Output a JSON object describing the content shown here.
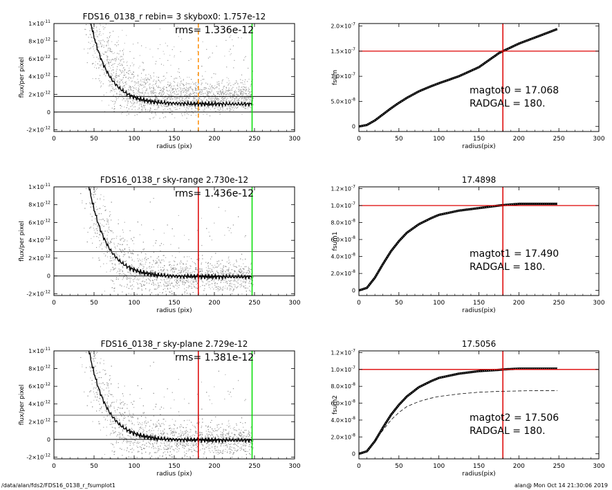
{
  "footer": {
    "left": "/data/alan/fds2/FDS16_0138_r_fsumplot1",
    "right": "alan@  Mon Oct 14 21:30:06 2019"
  },
  "chart_data": [
    {
      "type": "scatter",
      "title": "FDS16_0138_r rebin= 3    skybox0:  1.757e-12",
      "annotation": "rms= 1.336e-12",
      "xlabel": "radius (pix)",
      "ylabel": "flux/per pixel",
      "xlim": [
        0,
        300
      ],
      "ylim": [
        -2.2e-12,
        1e-11
      ],
      "xticks": [
        "0",
        "50",
        "100",
        "150",
        "200",
        "250",
        "300"
      ],
      "yticks": [
        {
          "value": 1e-11,
          "mant": "1×10",
          "exp": "-11"
        },
        {
          "value": 8e-12,
          "mant": "8×10",
          "exp": "-12"
        },
        {
          "value": 6e-12,
          "mant": "6×10",
          "exp": "-12"
        },
        {
          "value": 4e-12,
          "mant": "4×10",
          "exp": "-12"
        },
        {
          "value": 2e-12,
          "mant": "2×10",
          "exp": "-12"
        },
        {
          "value": 0,
          "mant": "0",
          "exp": ""
        },
        {
          "value": -2e-12,
          "mant": "-2×10",
          "exp": "-12"
        }
      ],
      "sky_level": 1.757e-12,
      "profile_end": 9e-13,
      "hlines": [
        {
          "y": 1.757e-12,
          "color": "#000000"
        },
        {
          "y": 0,
          "color": "#000000"
        }
      ],
      "vlines": [
        {
          "x": 180,
          "color": "#ff8c00",
          "dash": true
        },
        {
          "x": 247,
          "color": "#00dd00",
          "dash": false
        }
      ],
      "grid": false
    },
    {
      "type": "line",
      "xlabel": "radius(pix)",
      "ylabel": "fsum",
      "xlim": [
        0,
        300
      ],
      "ylim": [
        -1e-08,
        2.05e-07
      ],
      "xticks": [
        "0",
        "50",
        "100",
        "150",
        "200",
        "250",
        "300"
      ],
      "yticks": [
        {
          "value": 2e-07,
          "mant": "2.0×10",
          "exp": "-7"
        },
        {
          "value": 1.5e-07,
          "mant": "1.5×10",
          "exp": "-7"
        },
        {
          "value": 1e-07,
          "mant": "1.0×10",
          "exp": "-7"
        },
        {
          "value": 5e-08,
          "mant": "5.0×10",
          "exp": "-8"
        },
        {
          "value": 0,
          "mant": "0",
          "exp": ""
        }
      ],
      "curve": {
        "x": [
          0,
          10,
          20,
          30,
          40,
          50,
          60,
          75,
          90,
          100,
          125,
          150,
          175,
          180,
          200,
          225,
          248
        ],
        "y": [
          0,
          3e-09,
          1.2e-08,
          2.4e-08,
          3.6e-08,
          4.7e-08,
          5.7e-08,
          7e-08,
          8e-08,
          8.6e-08,
          1e-07,
          1.18e-07,
          1.46e-07,
          1.5e-07,
          1.65e-07,
          1.8e-07,
          1.94e-07
        ]
      },
      "hline": 1.5e-07,
      "vline": 180,
      "text_lines": [
        "magtot0 =  17.068",
        "RADGAL =    180."
      ],
      "grid": false
    },
    {
      "type": "scatter",
      "title": "FDS16_0138_r sky-range  2.730e-12",
      "annotation": "rms= 1.436e-12",
      "xlabel": "radius (pix)",
      "ylabel": "flux/per pixel",
      "xlim": [
        0,
        300
      ],
      "ylim": [
        -2.2e-12,
        1e-11
      ],
      "xticks": [
        "0",
        "50",
        "100",
        "150",
        "200",
        "250",
        "300"
      ],
      "yticks": [
        {
          "value": 1e-11,
          "mant": "1×10",
          "exp": "-11"
        },
        {
          "value": 8e-12,
          "mant": "8×10",
          "exp": "-12"
        },
        {
          "value": 6e-12,
          "mant": "6×10",
          "exp": "-12"
        },
        {
          "value": 4e-12,
          "mant": "4×10",
          "exp": "-12"
        },
        {
          "value": 2e-12,
          "mant": "2×10",
          "exp": "-12"
        },
        {
          "value": 0,
          "mant": "0",
          "exp": ""
        },
        {
          "value": -2e-12,
          "mant": "-2×10",
          "exp": "-12"
        }
      ],
      "sky_level": 0,
      "profile_end": -1e-13,
      "hlines": [
        {
          "y": 2.73e-12,
          "color": "#555555"
        },
        {
          "y": 0,
          "color": "#000000"
        }
      ],
      "vlines": [
        {
          "x": 180,
          "color": "#dd0000",
          "dash": false
        },
        {
          "x": 247,
          "color": "#00dd00",
          "dash": false
        }
      ],
      "grid": false
    },
    {
      "type": "line",
      "title": "17.4898",
      "xlabel": "radius(pix)",
      "ylabel": "fsum1",
      "xlim": [
        0,
        300
      ],
      "ylim": [
        -6e-09,
        1.22e-07
      ],
      "xticks": [
        "0",
        "50",
        "100",
        "150",
        "200",
        "250",
        "300"
      ],
      "yticks": [
        {
          "value": 1.2e-07,
          "mant": "1.2×10",
          "exp": "-7"
        },
        {
          "value": 1e-07,
          "mant": "1.0×10",
          "exp": "-7"
        },
        {
          "value": 8e-08,
          "mant": "8.0×10",
          "exp": "-8"
        },
        {
          "value": 6e-08,
          "mant": "6.0×10",
          "exp": "-8"
        },
        {
          "value": 4e-08,
          "mant": "4.0×10",
          "exp": "-8"
        },
        {
          "value": 2e-08,
          "mant": "2.0×10",
          "exp": "-8"
        },
        {
          "value": 0,
          "mant": "0",
          "exp": ""
        }
      ],
      "curve": {
        "x": [
          0,
          10,
          20,
          30,
          40,
          50,
          60,
          75,
          90,
          100,
          125,
          150,
          175,
          180,
          200,
          225,
          248
        ],
        "y": [
          0,
          3e-09,
          1.5e-08,
          3.1e-08,
          4.6e-08,
          5.8e-08,
          6.8e-08,
          7.8e-08,
          8.5e-08,
          8.9e-08,
          9.4e-08,
          9.7e-08,
          1e-07,
          1.005e-07,
          1.02e-07,
          1.02e-07,
          1.02e-07
        ]
      },
      "hline": 1e-07,
      "vline": 180,
      "text_lines": [
        "magtot1 =  17.490",
        "RADGAL =    180."
      ],
      "grid": false
    },
    {
      "type": "scatter",
      "title": "FDS16_0138_r sky-plane  2.729e-12",
      "annotation": "rms= 1.381e-12",
      "xlabel": "radius (pix)",
      "ylabel": "flux/per pixel",
      "xlim": [
        0,
        300
      ],
      "ylim": [
        -2.2e-12,
        1e-11
      ],
      "xticks": [
        "0",
        "50",
        "100",
        "150",
        "200",
        "250",
        "300"
      ],
      "yticks": [
        {
          "value": 1e-11,
          "mant": "1×10",
          "exp": "-11"
        },
        {
          "value": 8e-12,
          "mant": "8×10",
          "exp": "-12"
        },
        {
          "value": 6e-12,
          "mant": "6×10",
          "exp": "-12"
        },
        {
          "value": 4e-12,
          "mant": "4×10",
          "exp": "-12"
        },
        {
          "value": 2e-12,
          "mant": "2×10",
          "exp": "-12"
        },
        {
          "value": 0,
          "mant": "0",
          "exp": ""
        },
        {
          "value": -2e-12,
          "mant": "-2×10",
          "exp": "-12"
        }
      ],
      "sky_level": 0,
      "profile_end": -1e-13,
      "hlines": [
        {
          "y": 2.729e-12,
          "color": "#555555"
        },
        {
          "y": 0,
          "color": "#000000"
        }
      ],
      "vlines": [
        {
          "x": 180,
          "color": "#dd0000",
          "dash": false
        },
        {
          "x": 247,
          "color": "#00dd00",
          "dash": false
        }
      ],
      "grid": false
    },
    {
      "type": "line",
      "title": "17.5056",
      "xlabel": "radius(pix)",
      "ylabel": "fsum2",
      "xlim": [
        0,
        300
      ],
      "ylim": [
        -6e-09,
        1.22e-07
      ],
      "xticks": [
        "0",
        "50",
        "100",
        "150",
        "200",
        "250",
        "300"
      ],
      "yticks": [
        {
          "value": 1.2e-07,
          "mant": "1.2×10",
          "exp": "-7"
        },
        {
          "value": 1e-07,
          "mant": "1.0×10",
          "exp": "-7"
        },
        {
          "value": 8e-08,
          "mant": "8.0×10",
          "exp": "-8"
        },
        {
          "value": 6e-08,
          "mant": "6.0×10",
          "exp": "-8"
        },
        {
          "value": 4e-08,
          "mant": "4.0×10",
          "exp": "-8"
        },
        {
          "value": 2e-08,
          "mant": "2.0×10",
          "exp": "-8"
        },
        {
          "value": 0,
          "mant": "0",
          "exp": ""
        }
      ],
      "curve": {
        "x": [
          0,
          10,
          20,
          30,
          40,
          50,
          60,
          75,
          90,
          100,
          125,
          150,
          175,
          180,
          200,
          225,
          248
        ],
        "y": [
          0,
          3e-09,
          1.5e-08,
          3.1e-08,
          4.6e-08,
          5.8e-08,
          6.8e-08,
          7.9e-08,
          8.6e-08,
          9e-08,
          9.5e-08,
          9.8e-08,
          9.95e-08,
          1e-07,
          1.01e-07,
          1.01e-07,
          1.01e-07
        ]
      },
      "dashed_curve": {
        "x": [
          20,
          30,
          40,
          50,
          60,
          75,
          90,
          100,
          125,
          150,
          175,
          200,
          225,
          248
        ],
        "y": [
          1.5e-08,
          2.8e-08,
          4e-08,
          4.9e-08,
          5.6e-08,
          6.2e-08,
          6.6e-08,
          6.8e-08,
          7.1e-08,
          7.3e-08,
          7.4e-08,
          7.45e-08,
          7.5e-08,
          7.5e-08
        ]
      },
      "hline": 1e-07,
      "vline": 180,
      "text_lines": [
        "magtot2 =  17.506",
        "RADGAL =    180."
      ],
      "grid": false
    }
  ]
}
